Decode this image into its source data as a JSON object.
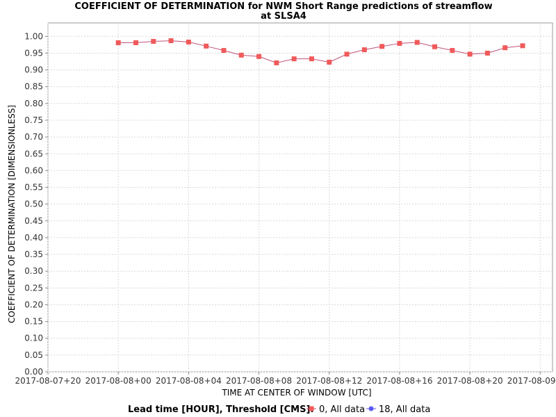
{
  "chart_data": {
    "type": "line",
    "title": "COEFFICIENT OF DETERMINATION for NWM Short Range predictions of streamflow",
    "subtitle": "at SLSA4",
    "xlabel": "TIME AT CENTER OF WINDOW [UTC]",
    "ylabel": "COEFFICIENT OF DETERMINATION [DIMENSIONLESS]",
    "ylim": [
      0,
      1.04
    ],
    "xlim": [
      "2017-08-07T20:00",
      "2017-08-09T00:42"
    ],
    "yticks": [
      "0.00",
      "0.05",
      "0.10",
      "0.15",
      "0.20",
      "0.25",
      "0.30",
      "0.35",
      "0.40",
      "0.45",
      "0.50",
      "0.55",
      "0.60",
      "0.65",
      "0.70",
      "0.75",
      "0.80",
      "0.85",
      "0.90",
      "0.95",
      "1.00"
    ],
    "xticks": [
      {
        "time": "2017-08-07T20:00",
        "label": "2017-08-07+20"
      },
      {
        "time": "2017-08-08T00:00",
        "label": "2017-08-08+00"
      },
      {
        "time": "2017-08-08T04:00",
        "label": "2017-08-08+04"
      },
      {
        "time": "2017-08-08T08:00",
        "label": "2017-08-08+08"
      },
      {
        "time": "2017-08-08T12:00",
        "label": "2017-08-08+12"
      },
      {
        "time": "2017-08-08T16:00",
        "label": "2017-08-08+16"
      },
      {
        "time": "2017-08-08T20:00",
        "label": "2017-08-08+20"
      },
      {
        "time": "2017-08-09T00:00",
        "label": "2017-08-09+00"
      }
    ],
    "grid": true,
    "legend_placement": "bottom",
    "legend_title": "Lead time [HOUR], Threshold [CMS]:",
    "series": [
      {
        "name": "0, All data",
        "color": "#f05a5a",
        "line_color": "#c0507a",
        "marker": "square",
        "x": [
          "2017-08-08T00:00",
          "2017-08-08T01:00",
          "2017-08-08T02:00",
          "2017-08-08T03:00",
          "2017-08-08T04:00",
          "2017-08-08T05:00",
          "2017-08-08T06:00",
          "2017-08-08T07:00",
          "2017-08-08T08:00",
          "2017-08-08T09:00",
          "2017-08-08T10:00",
          "2017-08-08T11:00",
          "2017-08-08T12:00",
          "2017-08-08T13:00",
          "2017-08-08T14:00",
          "2017-08-08T15:00",
          "2017-08-08T16:00",
          "2017-08-08T17:00",
          "2017-08-08T18:00",
          "2017-08-08T19:00",
          "2017-08-08T20:00",
          "2017-08-08T21:00",
          "2017-08-08T22:00",
          "2017-08-08T23:00"
        ],
        "values": [
          0.981,
          0.981,
          0.985,
          0.987,
          0.983,
          0.971,
          0.958,
          0.944,
          0.94,
          0.921,
          0.933,
          0.933,
          0.923,
          0.947,
          0.96,
          0.97,
          0.979,
          0.982,
          0.969,
          0.958,
          0.947,
          0.95,
          0.966,
          0.972
        ]
      },
      {
        "name": "18, All data",
        "color": "#5a5af0",
        "marker": "circle",
        "x": [],
        "values": []
      }
    ]
  }
}
